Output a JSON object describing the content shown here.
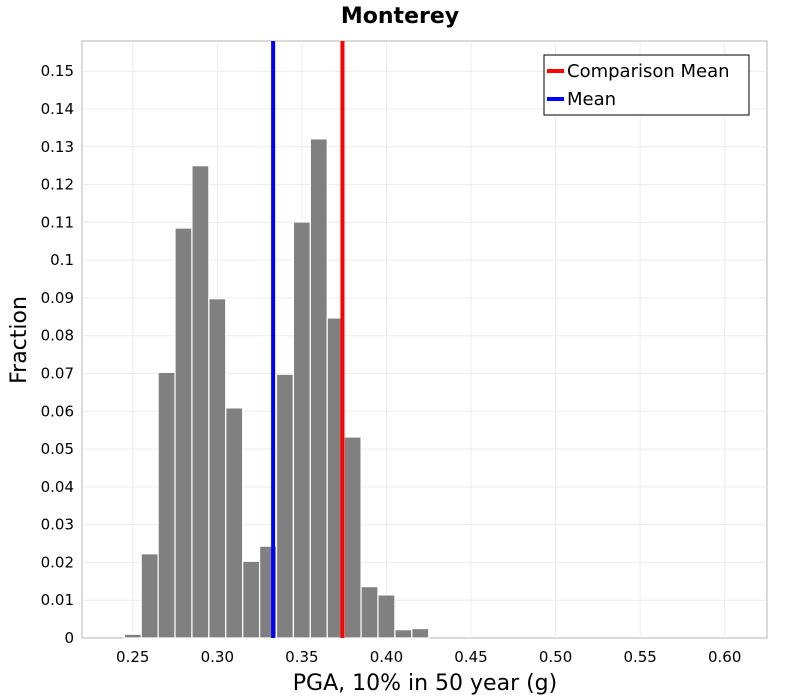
{
  "chart_data": {
    "type": "bar",
    "title": "Monterey",
    "xlabel": "PGA, 10% in 50 year (g)",
    "ylabel": "Fraction",
    "xlim": [
      0.22,
      0.625
    ],
    "ylim": [
      0,
      0.158
    ],
    "xticks": [
      "0.25",
      "0.30",
      "0.35",
      "0.40",
      "0.45",
      "0.50",
      "0.55",
      "0.60"
    ],
    "yticks": [
      "0",
      "0.01",
      "0.02",
      "0.03",
      "0.04",
      "0.05",
      "0.06",
      "0.07",
      "0.08",
      "0.09",
      "0.1",
      "0.11",
      "0.12",
      "0.13",
      "0.14",
      "0.15"
    ],
    "grid": true,
    "legend_position": "top-right",
    "bin_width": 0.01,
    "bins": [
      {
        "x": 0.25,
        "value": 0.001
      },
      {
        "x": 0.26,
        "value": 0.0223
      },
      {
        "x": 0.27,
        "value": 0.0703
      },
      {
        "x": 0.28,
        "value": 0.1085
      },
      {
        "x": 0.29,
        "value": 0.125
      },
      {
        "x": 0.3,
        "value": 0.0898
      },
      {
        "x": 0.31,
        "value": 0.0609
      },
      {
        "x": 0.32,
        "value": 0.0203
      },
      {
        "x": 0.33,
        "value": 0.0243
      },
      {
        "x": 0.34,
        "value": 0.0698
      },
      {
        "x": 0.35,
        "value": 0.1101
      },
      {
        "x": 0.36,
        "value": 0.1321
      },
      {
        "x": 0.37,
        "value": 0.0847
      },
      {
        "x": 0.38,
        "value": 0.0532
      },
      {
        "x": 0.39,
        "value": 0.0136
      },
      {
        "x": 0.4,
        "value": 0.0114
      },
      {
        "x": 0.41,
        "value": 0.0022
      },
      {
        "x": 0.42,
        "value": 0.0025
      }
    ],
    "bar_color": "#808080",
    "vlines": [
      {
        "name": "Comparison Mean",
        "x": 0.374,
        "color": "#ff0000"
      },
      {
        "name": "Mean",
        "x": 0.333,
        "color": "#0000ff"
      }
    ]
  }
}
